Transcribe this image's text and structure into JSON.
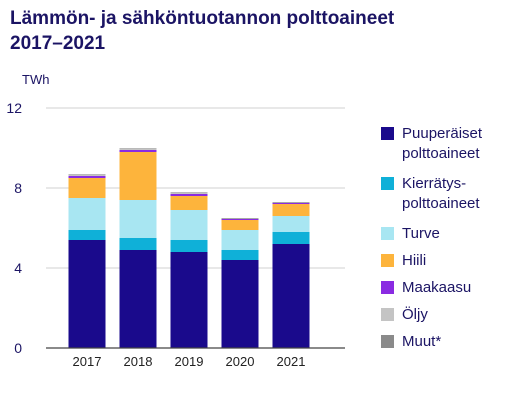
{
  "title_line1": "Lämmön- ja sähköntuotannon polttoaineet",
  "title_line2": "2017–2021",
  "chart_data": {
    "type": "bar",
    "stacked": true,
    "ylabel": "TWh",
    "ylim": [
      0,
      12
    ],
    "yticks": [
      0,
      4,
      8,
      12
    ],
    "categories": [
      "2017",
      "2018",
      "2019",
      "2020",
      "2021"
    ],
    "series": [
      {
        "name": "Puuperäiset polttoaineet",
        "color": "#1a0a8c",
        "values": [
          5.4,
          4.9,
          4.8,
          4.4,
          5.2
        ]
      },
      {
        "name": "Kierrätys-polttoaineet",
        "color": "#0fb0d8",
        "values": [
          0.5,
          0.6,
          0.6,
          0.5,
          0.6
        ]
      },
      {
        "name": "Turve",
        "color": "#a8e6f2",
        "values": [
          1.6,
          1.9,
          1.5,
          1.0,
          0.8
        ]
      },
      {
        "name": "Hiili",
        "color": "#fdb43c",
        "values": [
          1.0,
          2.4,
          0.7,
          0.5,
          0.6
        ]
      },
      {
        "name": "Maakaasu",
        "color": "#8a2be2",
        "values": [
          0.1,
          0.1,
          0.1,
          0.05,
          0.05
        ]
      },
      {
        "name": "Öljy",
        "color": "#c4c4c4",
        "values": [
          0.05,
          0.05,
          0.05,
          0.03,
          0.03
        ]
      },
      {
        "name": "Muut*",
        "color": "#8a8a8a",
        "values": [
          0.03,
          0.03,
          0.03,
          0.02,
          0.02
        ]
      }
    ],
    "legend_labels": [
      [
        "Puuperäiset",
        "polttoaineet"
      ],
      [
        "Kierrätys-",
        "polttoaineet"
      ],
      [
        "Turve"
      ],
      [
        "Hiili"
      ],
      [
        "Maakaasu"
      ],
      [
        "Öljy"
      ],
      [
        "Muut*"
      ]
    ],
    "legend_position": "right",
    "axis_color": "#1b1464"
  }
}
